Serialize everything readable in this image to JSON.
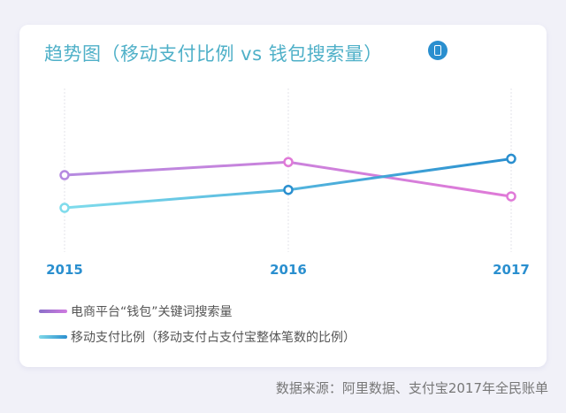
{
  "chart_data": {
    "type": "line",
    "title": "趋势图（移动支付比例 vs 钱包搜索量）",
    "categories": [
      "2015",
      "2016",
      "2017"
    ],
    "ylim": [
      0,
      100
    ],
    "y_axis_shown": false,
    "grid": "vertical",
    "legend_position": "bottom-left",
    "series": [
      {
        "name": "电商平台“钱包”关键词搜索量",
        "values": [
          47,
          55,
          34
        ],
        "color": "#c47ad8"
      },
      {
        "name": "移动支付比例（移动支付占支付宝整体笔数的比例）",
        "values": [
          27,
          38,
          57
        ],
        "color": "#3aa7d0"
      }
    ]
  },
  "icon": "phone-icon",
  "source": "数据来源：阿里数据、支付宝2017年全民账单"
}
